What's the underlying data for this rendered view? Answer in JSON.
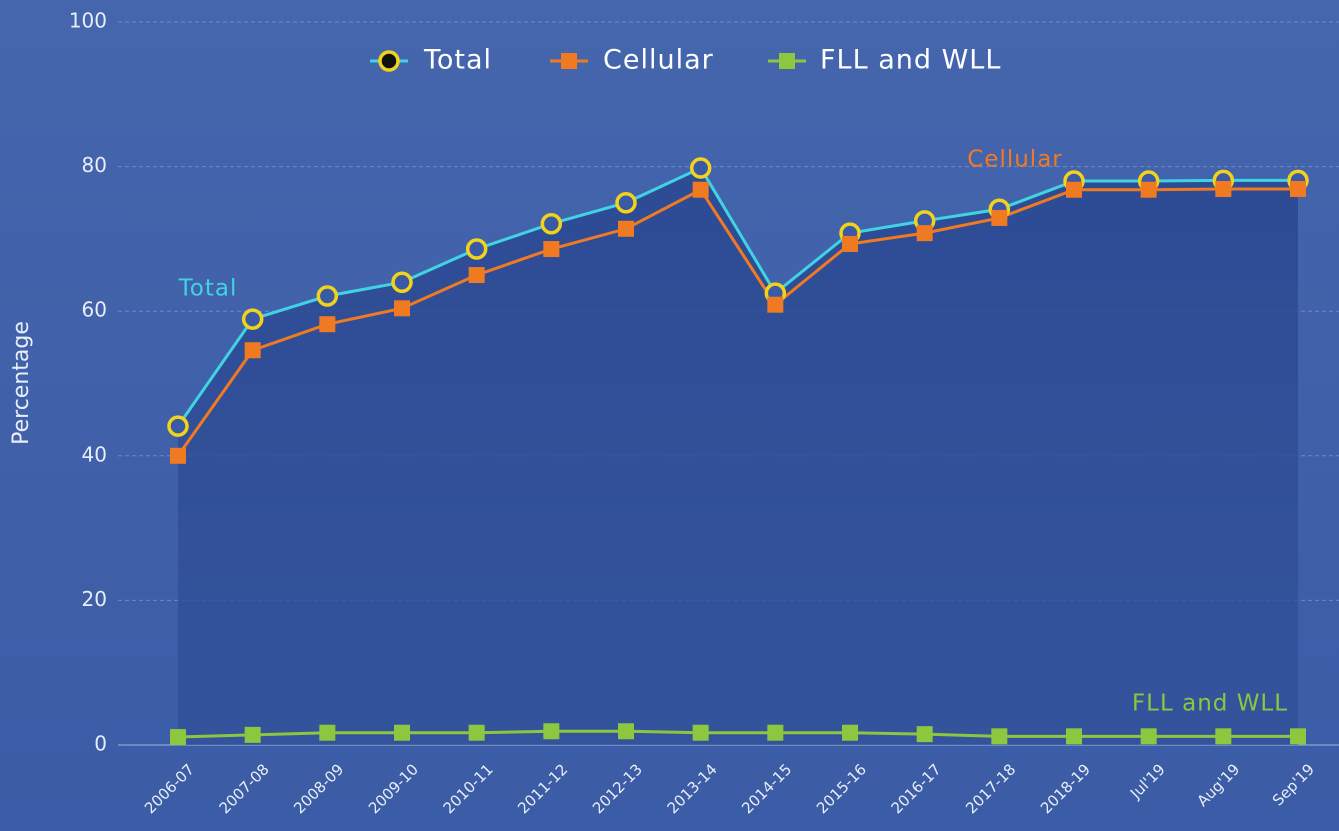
{
  "chart_data": {
    "type": "line",
    "y_label": "Percentage",
    "categories": [
      "2006-07",
      "2007-08",
      "2008-09",
      "2009-10",
      "2010-11",
      "2011-12",
      "2012-13",
      "2013-14",
      "2014-15",
      "2015-16",
      "2016-17",
      "2017-18",
      "2018-19",
      "Jul'19",
      "Aug'19",
      "Sep'19"
    ],
    "series": [
      {
        "name": "Total",
        "color": "#3fd3e3",
        "marker": "circle",
        "values": [
          44.1,
          58.9,
          62.1,
          64.0,
          68.6,
          72.1,
          75.0,
          79.8,
          62.5,
          70.8,
          72.5,
          74.1,
          78.0,
          78.0,
          78.1,
          78.1
        ]
      },
      {
        "name": "Cellular",
        "color": "#f07a22",
        "marker": "square",
        "values": [
          40.0,
          54.6,
          58.2,
          60.4,
          65.0,
          68.6,
          71.4,
          76.8,
          60.9,
          69.3,
          70.8,
          72.9,
          76.8,
          76.8,
          76.9,
          76.9
        ]
      },
      {
        "name": "FLL and WLL",
        "color": "#8dc63f",
        "marker": "square",
        "values": [
          1.1,
          1.4,
          1.7,
          1.7,
          1.7,
          1.9,
          1.9,
          1.7,
          1.7,
          1.7,
          1.5,
          1.2,
          1.2,
          1.2,
          1.2,
          1.2
        ]
      }
    ],
    "annotations": [
      "Total",
      "Cellular",
      "FLL and WLL"
    ],
    "ylim": [
      0,
      100
    ],
    "yticks": [
      0,
      20,
      40,
      60,
      80,
      100
    ],
    "grid": true,
    "legend": "top"
  }
}
